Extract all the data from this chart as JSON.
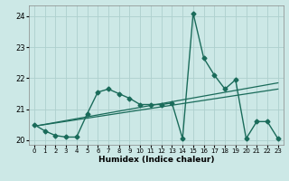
{
  "xlabel": "Humidex (Indice chaleur)",
  "ylabel": "",
  "xlim": [
    -0.5,
    23.5
  ],
  "ylim": [
    19.85,
    24.35
  ],
  "yticks": [
    20,
    21,
    22,
    23,
    24
  ],
  "xticks": [
    0,
    1,
    2,
    3,
    4,
    5,
    6,
    7,
    8,
    9,
    10,
    11,
    12,
    13,
    14,
    15,
    16,
    17,
    18,
    19,
    20,
    21,
    22,
    23
  ],
  "bg_color": "#cce8e6",
  "grid_color": "#aed0ce",
  "line_color": "#1a6b5a",
  "main_x": [
    0,
    1,
    2,
    3,
    4,
    5,
    6,
    7,
    8,
    9,
    10,
    11,
    12,
    13,
    14,
    15,
    16,
    17,
    18,
    19,
    20,
    21,
    22,
    23
  ],
  "main_y": [
    20.5,
    20.3,
    20.15,
    20.1,
    20.1,
    20.85,
    21.55,
    21.65,
    21.5,
    21.35,
    21.15,
    21.15,
    21.15,
    21.2,
    20.05,
    24.1,
    22.65,
    22.1,
    21.65,
    21.95,
    20.05,
    20.6,
    20.6,
    20.05
  ],
  "trend1_x": [
    0,
    23
  ],
  "trend1_y": [
    20.45,
    21.85
  ],
  "trend2_x": [
    0,
    23
  ],
  "trend2_y": [
    20.45,
    21.65
  ],
  "marker_size": 2.5,
  "linewidth": 1.0
}
